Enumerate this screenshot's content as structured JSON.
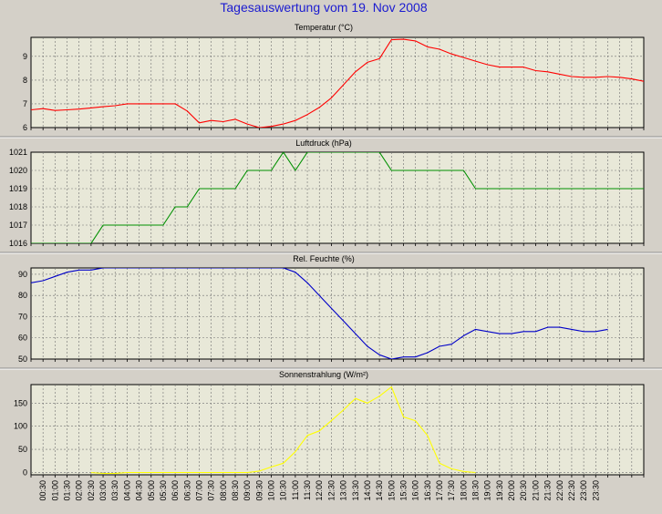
{
  "page": {
    "title": "Tagesauswertung vom 19. Nov 2008"
  },
  "colors": {
    "background": "#d4d0c8",
    "plot_background": "#e8e8d8",
    "title_text": "#1b1bd0",
    "temperature": "#ff0000",
    "pressure": "#009000",
    "humidity": "#0000c8",
    "radiation": "#ffff00"
  },
  "chart_data": [
    {
      "type": "line",
      "title": "Temperatur (°C)",
      "ylim": [
        6,
        9.8
      ],
      "yticks": [
        6,
        7,
        8,
        9
      ],
      "grid": true,
      "series": [
        {
          "color": "#ff0000",
          "points": [
            [
              0,
              6.75
            ],
            [
              1,
              6.8
            ],
            [
              2,
              6.72
            ],
            [
              3,
              6.75
            ],
            [
              4,
              6.78
            ],
            [
              5,
              6.83
            ],
            [
              6,
              6.88
            ],
            [
              7,
              6.92
            ],
            [
              8,
              7.0
            ],
            [
              9,
              7.0
            ],
            [
              10,
              7.0
            ],
            [
              11,
              7.0
            ],
            [
              12,
              7.0
            ],
            [
              13,
              6.7
            ],
            [
              14,
              6.2
            ],
            [
              15,
              6.3
            ],
            [
              16,
              6.25
            ],
            [
              17,
              6.35
            ],
            [
              18,
              6.15
            ],
            [
              19,
              6.0
            ],
            [
              20,
              6.05
            ],
            [
              21,
              6.15
            ],
            [
              22,
              6.3
            ],
            [
              23,
              6.55
            ],
            [
              24,
              6.85
            ],
            [
              25,
              7.25
            ],
            [
              26,
              7.8
            ],
            [
              27,
              8.35
            ],
            [
              28,
              8.75
            ],
            [
              29,
              8.9
            ],
            [
              30,
              9.7
            ],
            [
              31,
              9.72
            ],
            [
              32,
              9.65
            ],
            [
              33,
              9.4
            ],
            [
              34,
              9.3
            ],
            [
              35,
              9.1
            ],
            [
              36,
              8.95
            ],
            [
              37,
              8.8
            ],
            [
              38,
              8.65
            ],
            [
              39,
              8.55
            ],
            [
              40,
              8.55
            ],
            [
              41,
              8.55
            ],
            [
              42,
              8.4
            ],
            [
              43,
              8.35
            ],
            [
              44,
              8.25
            ],
            [
              45,
              8.15
            ],
            [
              46,
              8.12
            ],
            [
              47,
              8.12
            ],
            [
              48,
              8.15
            ],
            [
              49,
              8.12
            ],
            [
              50,
              8.05
            ],
            [
              51,
              7.95
            ]
          ]
        }
      ]
    },
    {
      "type": "line",
      "title": "Luftdruck (hPa)",
      "ylim": [
        1016,
        1021
      ],
      "yticks": [
        1016,
        1017,
        1018,
        1019,
        1020,
        1021
      ],
      "grid": true,
      "series": [
        {
          "color": "#009000",
          "points": [
            [
              0,
              1016
            ],
            [
              5,
              1016
            ],
            [
              6,
              1017
            ],
            [
              11,
              1017
            ],
            [
              12,
              1018
            ],
            [
              13,
              1018
            ],
            [
              14,
              1019
            ],
            [
              17,
              1019
            ],
            [
              18,
              1020
            ],
            [
              20,
              1020
            ],
            [
              21,
              1021
            ],
            [
              22,
              1020
            ],
            [
              23,
              1021
            ],
            [
              29,
              1021
            ],
            [
              30,
              1020
            ],
            [
              36,
              1020
            ],
            [
              37,
              1019
            ],
            [
              51,
              1019
            ]
          ]
        }
      ]
    },
    {
      "type": "line",
      "title": "Rel. Feuchte (%)",
      "ylim": [
        50,
        93
      ],
      "yticks": [
        50,
        60,
        70,
        80,
        90
      ],
      "grid": true,
      "series": [
        {
          "color": "#0000c8",
          "points": [
            [
              0,
              86
            ],
            [
              1,
              87
            ],
            [
              2,
              89
            ],
            [
              3,
              91
            ],
            [
              4,
              92
            ],
            [
              5,
              92
            ],
            [
              6,
              93
            ],
            [
              7,
              93
            ],
            [
              8,
              93
            ],
            [
              9,
              93
            ],
            [
              10,
              93
            ],
            [
              11,
              93
            ],
            [
              12,
              93
            ],
            [
              13,
              93
            ],
            [
              14,
              93
            ],
            [
              15,
              93
            ],
            [
              16,
              93
            ],
            [
              17,
              93
            ],
            [
              18,
              93
            ],
            [
              19,
              93
            ],
            [
              20,
              93
            ],
            [
              21,
              93
            ],
            [
              22,
              91
            ],
            [
              23,
              86
            ],
            [
              24,
              80
            ],
            [
              25,
              74
            ],
            [
              26,
              68
            ],
            [
              27,
              62
            ],
            [
              28,
              56
            ],
            [
              29,
              52
            ],
            [
              30,
              50
            ],
            [
              31,
              51
            ],
            [
              32,
              51
            ],
            [
              33,
              53
            ],
            [
              34,
              56
            ],
            [
              35,
              57
            ],
            [
              36,
              61
            ],
            [
              37,
              64
            ],
            [
              38,
              63
            ],
            [
              39,
              62
            ],
            [
              40,
              62
            ],
            [
              41,
              63
            ],
            [
              42,
              63
            ],
            [
              43,
              65
            ],
            [
              44,
              65
            ],
            [
              45,
              64
            ],
            [
              46,
              63
            ],
            [
              47,
              63
            ],
            [
              48,
              64
            ]
          ]
        }
      ]
    },
    {
      "type": "line",
      "title": "Sonnenstrahlung (W/m²)",
      "ylim": [
        -5,
        190
      ],
      "yticks": [
        0,
        50,
        100,
        150
      ],
      "grid": true,
      "series": [
        {
          "color": "#ffff00",
          "points": [
            [
              5,
              0
            ],
            [
              6,
              -2
            ],
            [
              7,
              -2
            ],
            [
              8,
              0
            ],
            [
              9,
              0
            ],
            [
              10,
              0
            ],
            [
              11,
              0
            ],
            [
              12,
              0
            ],
            [
              13,
              0
            ],
            [
              14,
              0
            ],
            [
              15,
              0
            ],
            [
              16,
              0
            ],
            [
              17,
              0
            ],
            [
              18,
              0
            ],
            [
              19,
              3
            ],
            [
              20,
              12
            ],
            [
              21,
              20
            ],
            [
              22,
              45
            ],
            [
              23,
              80
            ],
            [
              24,
              90
            ],
            [
              25,
              112
            ],
            [
              26,
              135
            ],
            [
              27,
              160
            ],
            [
              28,
              150
            ],
            [
              29,
              165
            ],
            [
              30,
              185
            ],
            [
              31,
              120
            ],
            [
              32,
              112
            ],
            [
              33,
              80
            ],
            [
              34,
              20
            ],
            [
              35,
              8
            ],
            [
              36,
              2
            ],
            [
              37,
              0
            ]
          ]
        }
      ]
    }
  ],
  "x_axis": {
    "tick_labels": [
      "00:30",
      "01:00",
      "01:30",
      "02:00",
      "02:30",
      "03:00",
      "03:30",
      "04:00",
      "04:30",
      "05:00",
      "05:30",
      "06:00",
      "06:30",
      "07:00",
      "07:30",
      "08:00",
      "08:30",
      "09:00",
      "09:30",
      "10:00",
      "10:30",
      "11:00",
      "11:30",
      "12:00",
      "12:30",
      "13:00",
      "13:30",
      "14:00",
      "14:30",
      "15:00",
      "15:30",
      "16:00",
      "16:30",
      "17:00",
      "17:30",
      "18:00",
      "18:30",
      "19:00",
      "19:30",
      "20:00",
      "20:30",
      "21:00",
      "21:30",
      "22:00",
      "22:30",
      "23:00",
      "23:30"
    ]
  }
}
